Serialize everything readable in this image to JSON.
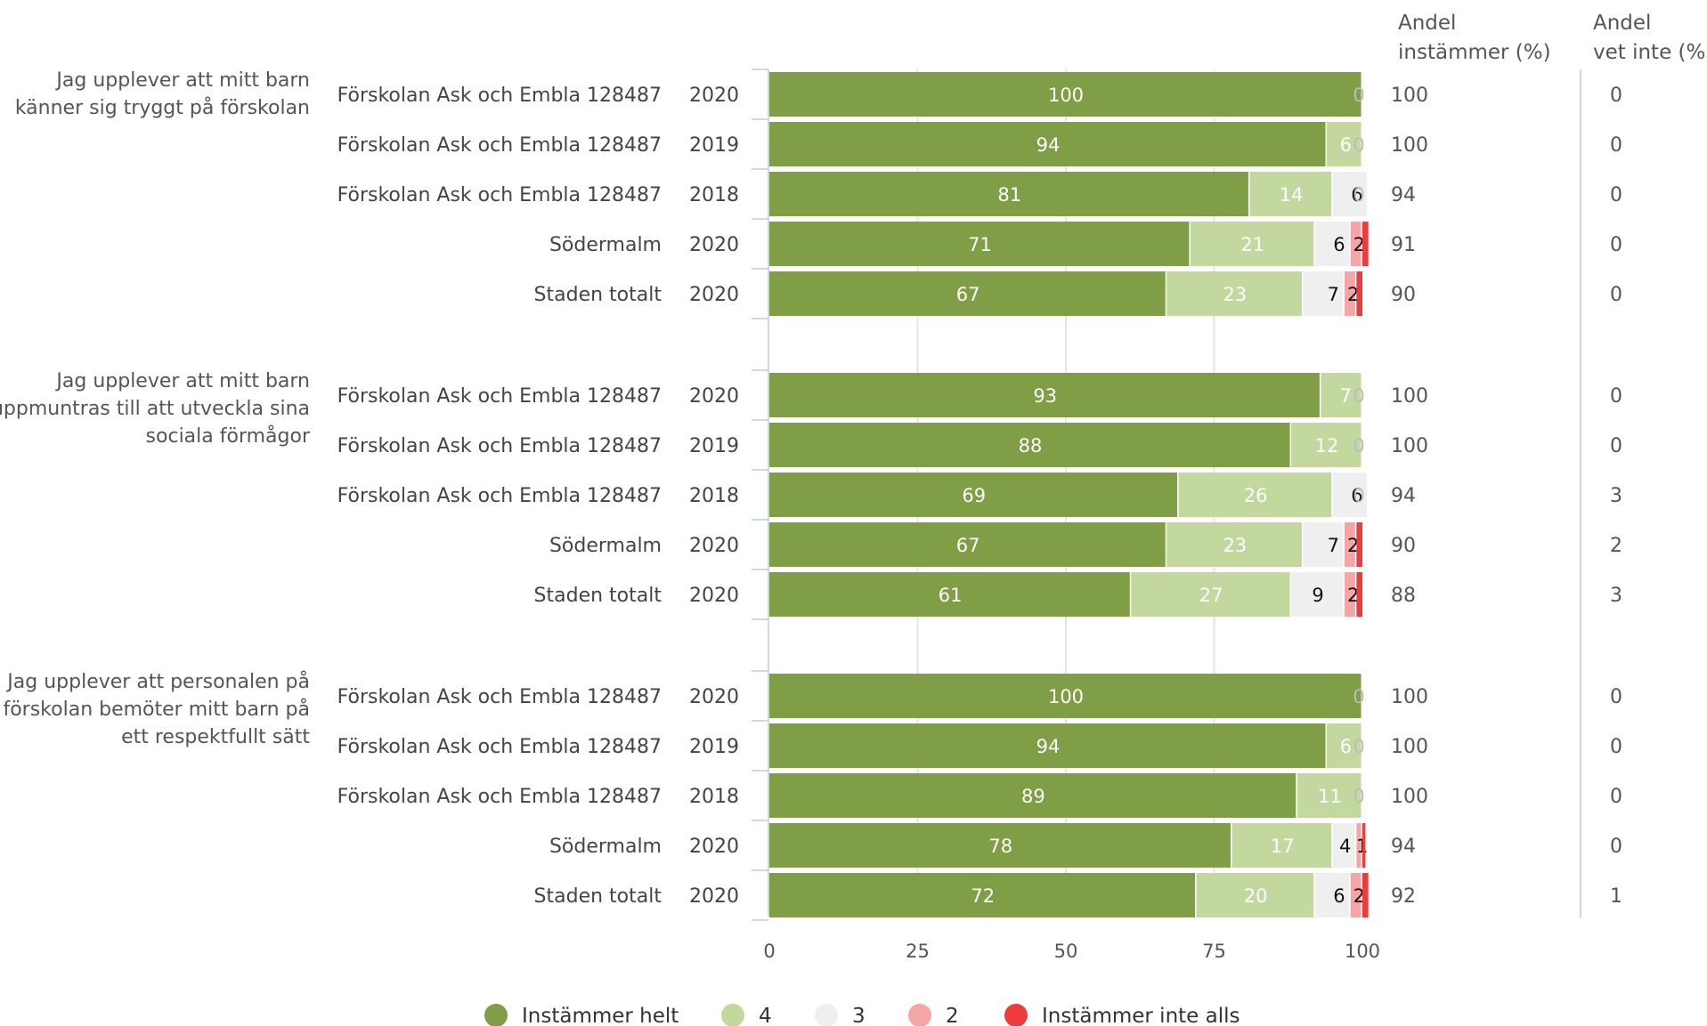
{
  "chart_data": {
    "type": "bar",
    "orientation": "horizontal",
    "stacked": true,
    "xlim": [
      0,
      100
    ],
    "x_ticks": [
      0,
      25,
      50,
      75,
      100
    ],
    "grid": true,
    "legend_placement": "bottom",
    "colors": {
      "Instämmer helt": "#7f9e45",
      "4": "#c3d89f",
      "3": "#efefef",
      "2": "#f5a5a5",
      "Instämmer inte alls": "#ee3b3b"
    },
    "headers": {
      "share_agree": [
        "Andel",
        "instämmer (%)"
      ],
      "share_dont_know": [
        "Andel",
        "vet inte (%)"
      ]
    },
    "legend": [
      "Instämmer helt",
      "4",
      "3",
      "2",
      "Instämmer inte alls"
    ],
    "questions": [
      {
        "text": [
          "Jag upplever att mitt barn",
          "känner sig tryggt på förskolan"
        ],
        "rows": [
          {
            "unit": "Förskolan Ask och Embla 128487",
            "year": "2020",
            "values": [
              100,
              0,
              0,
              0,
              0
            ],
            "labels": [
              "100",
              "",
              "",
              "",
              "0"
            ],
            "agree": "100",
            "dont_know": "0"
          },
          {
            "unit": "Förskolan Ask och Embla 128487",
            "year": "2019",
            "values": [
              94,
              6,
              0,
              0,
              0
            ],
            "labels": [
              "94",
              "6",
              "",
              "",
              "0"
            ],
            "agree": "100",
            "dont_know": "0"
          },
          {
            "unit": "Förskolan Ask och Embla 128487",
            "year": "2018",
            "values": [
              81,
              14,
              6,
              0,
              0
            ],
            "labels": [
              "81",
              "14",
              "6",
              "",
              "0"
            ],
            "agree": "94",
            "dont_know": "0"
          },
          {
            "unit": "Södermalm",
            "year": "2020",
            "values": [
              71,
              21,
              6,
              2,
              1
            ],
            "labels": [
              "71",
              "21",
              "6",
              "2",
              ""
            ],
            "agree": "91",
            "dont_know": "0"
          },
          {
            "unit": "Staden totalt",
            "year": "2020",
            "values": [
              67,
              23,
              7,
              2,
              1
            ],
            "labels": [
              "67",
              "23",
              "7",
              "2",
              ""
            ],
            "agree": "90",
            "dont_know": "0"
          }
        ]
      },
      {
        "text": [
          "Jag upplever att mitt barn",
          "uppmuntras till att utveckla sina",
          "sociala förmågor"
        ],
        "rows": [
          {
            "unit": "Förskolan Ask och Embla 128487",
            "year": "2020",
            "values": [
              93,
              7,
              0,
              0,
              0
            ],
            "labels": [
              "93",
              "7",
              "",
              "",
              "0"
            ],
            "agree": "100",
            "dont_know": "0"
          },
          {
            "unit": "Förskolan Ask och Embla 128487",
            "year": "2019",
            "values": [
              88,
              12,
              0,
              0,
              0
            ],
            "labels": [
              "88",
              "12",
              "",
              "",
              "0"
            ],
            "agree": "100",
            "dont_know": "0"
          },
          {
            "unit": "Förskolan Ask och Embla 128487",
            "year": "2018",
            "values": [
              69,
              26,
              6,
              0,
              0
            ],
            "labels": [
              "69",
              "26",
              "6",
              "",
              "0"
            ],
            "agree": "94",
            "dont_know": "3"
          },
          {
            "unit": "Södermalm",
            "year": "2020",
            "values": [
              67,
              23,
              7,
              2,
              1
            ],
            "labels": [
              "67",
              "23",
              "7",
              "2",
              ""
            ],
            "agree": "90",
            "dont_know": "2"
          },
          {
            "unit": "Staden totalt",
            "year": "2020",
            "values": [
              61,
              27,
              9,
              2,
              1
            ],
            "labels": [
              "61",
              "27",
              "9",
              "2",
              ""
            ],
            "agree": "88",
            "dont_know": "3"
          }
        ]
      },
      {
        "text": [
          "Jag upplever att personalen på",
          "förskolan bemöter mitt barn på",
          "ett respektfullt sätt"
        ],
        "rows": [
          {
            "unit": "Förskolan Ask och Embla 128487",
            "year": "2020",
            "values": [
              100,
              0,
              0,
              0,
              0
            ],
            "labels": [
              "100",
              "",
              "",
              "",
              "0"
            ],
            "agree": "100",
            "dont_know": "0"
          },
          {
            "unit": "Förskolan Ask och Embla 128487",
            "year": "2019",
            "values": [
              94,
              6,
              0,
              0,
              0
            ],
            "labels": [
              "94",
              "6",
              "",
              "",
              "0"
            ],
            "agree": "100",
            "dont_know": "0"
          },
          {
            "unit": "Förskolan Ask och Embla 128487",
            "year": "2018",
            "values": [
              89,
              11,
              0,
              0,
              0
            ],
            "labels": [
              "89",
              "11",
              "",
              "",
              "0"
            ],
            "agree": "100",
            "dont_know": "0"
          },
          {
            "unit": "Södermalm",
            "year": "2020",
            "values": [
              78,
              17,
              4,
              1,
              0.5
            ],
            "labels": [
              "78",
              "17",
              "4",
              "1",
              ""
            ],
            "agree": "94",
            "dont_know": "0"
          },
          {
            "unit": "Staden totalt",
            "year": "2020",
            "values": [
              72,
              20,
              6,
              2,
              1
            ],
            "labels": [
              "72",
              "20",
              "6",
              "2",
              ""
            ],
            "agree": "92",
            "dont_know": "1"
          }
        ]
      }
    ]
  }
}
